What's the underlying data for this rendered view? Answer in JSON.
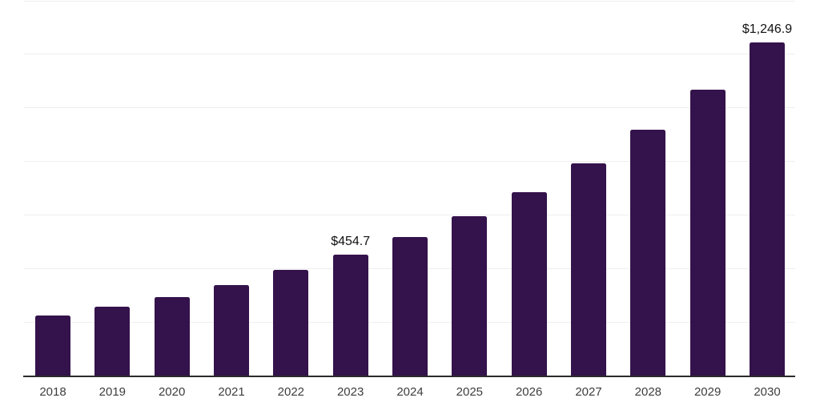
{
  "chart_data": {
    "type": "bar",
    "title": "",
    "xlabel": "",
    "ylabel": "",
    "categories": [
      "2018",
      "2019",
      "2020",
      "2021",
      "2022",
      "2023",
      "2024",
      "2025",
      "2026",
      "2027",
      "2028",
      "2029",
      "2030"
    ],
    "values": [
      226,
      259,
      296,
      342,
      397,
      454.7,
      521,
      597,
      686,
      794,
      920,
      1069,
      1246.9
    ],
    "value_labels": [
      "",
      "",
      "",
      "",
      "",
      "$454.7",
      "",
      "",
      "",
      "",
      "",
      "",
      "$1,246.9"
    ],
    "ylim": [
      0,
      1400
    ],
    "gridline_interval": 200,
    "grid": "horizontal",
    "legend_position": "none",
    "colors": {
      "bar": "#34124b",
      "gridline": "#efefef",
      "axis_line": "#2b2b2b",
      "tick_label": "#3d3d3d",
      "value_label": "#111111",
      "background": "#ffffff"
    }
  }
}
